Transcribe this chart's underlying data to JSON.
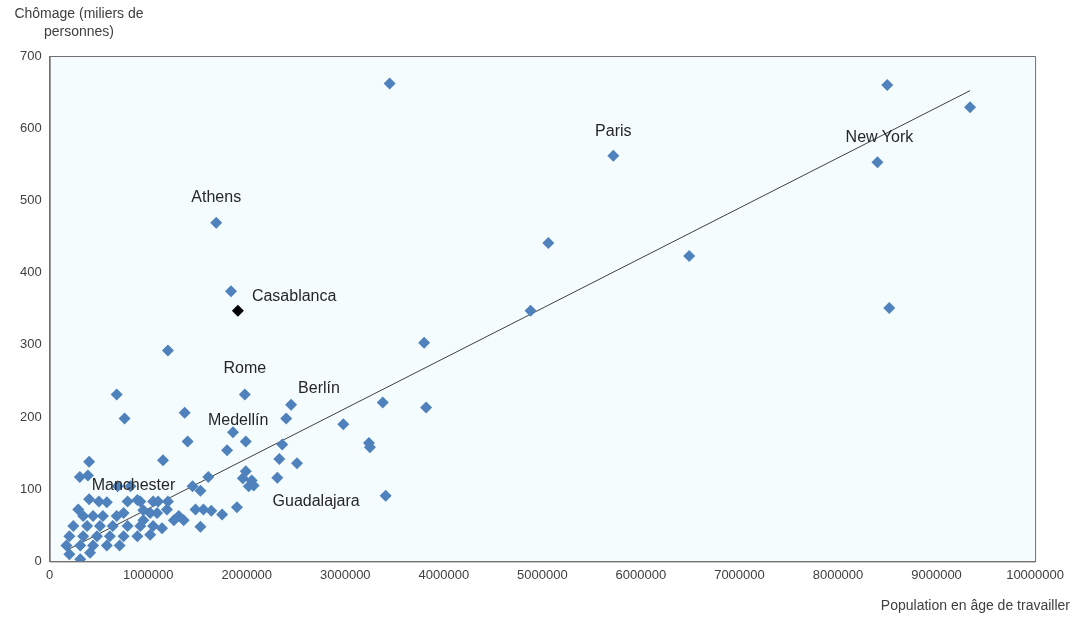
{
  "chart_data": {
    "type": "scatter",
    "xlabel": "Population en âge de travailler",
    "ylabel": "Chômage (miliers de personnes)",
    "marker": "diamond",
    "grid": false,
    "xlim": [
      0,
      10000000
    ],
    "xticks": [
      0,
      1000000,
      2000000,
      3000000,
      4000000,
      5000000,
      6000000,
      7000000,
      8000000,
      9000000,
      10000000
    ],
    "ylim": [
      0,
      700
    ],
    "yticks": [
      0,
      100,
      200,
      300,
      400,
      500,
      600,
      700
    ],
    "series": [
      {
        "color": "#4f81bd",
        "x": [
          3450000,
          8500000,
          9340000,
          5720000,
          8400000,
          1690000,
          5060000,
          6490000,
          1840000,
          4880000,
          8520000,
          3800000,
          1200000,
          680000,
          1980000,
          2450000,
          3380000,
          3820000,
          760000,
          1370000,
          2980000,
          2400000,
          1860000,
          1400000,
          1990000,
          3240000,
          3250000,
          1800000,
          2360000,
          2330000,
          2510000,
          400000,
          1150000,
          1610000,
          1990000,
          1960000,
          2050000,
          2070000,
          2020000,
          2310000,
          1900000,
          3410000,
          1530000,
          306000,
          388000,
          1480000,
          1560000,
          1640000,
          1750000,
          1530000,
          1310000,
          1360000,
          1190000,
          1200000,
          1450000,
          290000,
          400000,
          500000,
          580000,
          690000,
          820000,
          790000,
          890000,
          920000,
          1050000,
          1100000,
          950000,
          1020000,
          750000,
          680000,
          540000,
          440000,
          340000,
          240000,
          380000,
          510000,
          640000,
          790000,
          920000,
          1050000,
          200000,
          340000,
          480000,
          610000,
          750000,
          890000,
          170000,
          310000,
          440000,
          580000,
          710000,
          200000,
          310000,
          410000,
          950000,
          1090000,
          1260000,
          1020000,
          1140000
        ],
        "values": [
          662,
          660,
          629,
          562,
          553,
          469,
          441,
          423,
          374,
          347,
          351,
          303,
          292,
          231,
          231,
          217,
          220,
          213,
          198,
          206,
          190,
          198,
          179,
          166,
          166,
          164,
          158,
          154,
          162,
          142,
          136,
          138,
          140,
          117,
          125,
          115,
          112,
          105,
          104,
          116,
          75,
          91,
          98,
          117,
          119,
          72,
          72,
          70,
          65,
          48,
          63,
          57,
          72,
          83,
          104,
          72,
          86,
          83,
          82,
          104,
          104,
          83,
          85,
          83,
          83,
          83,
          71,
          67,
          67,
          63,
          63,
          63,
          63,
          49,
          49,
          49,
          49,
          49,
          49,
          49,
          35,
          35,
          35,
          35,
          35,
          35,
          22,
          22,
          22,
          22,
          22,
          10,
          3,
          12,
          57,
          67,
          57,
          37,
          46
        ]
      },
      {
        "color": "#000000",
        "x": [
          1910000
        ],
        "values": [
          347
        ]
      },
      {
        "type": "line",
        "color": "#404040",
        "marker": "none",
        "x": [
          180000,
          9340000
        ],
        "values": [
          16,
          652
        ]
      }
    ],
    "annotations": [
      {
        "text": "Athens",
        "x": 1690000,
        "y": 469
      },
      {
        "text": "Paris",
        "x": 5720000,
        "y": 562
      },
      {
        "text": "New York",
        "x": 8400000,
        "y": 553
      },
      {
        "text": "Casablanca",
        "x": 1910000,
        "y": 347
      },
      {
        "text": "Rome",
        "x": 1980000,
        "y": 231
      },
      {
        "text": "Berlín",
        "x": 2450000,
        "y": 217
      },
      {
        "text": "Medellín",
        "x": 1860000,
        "y": 179
      },
      {
        "text": "Manchester",
        "x": 690000,
        "y": 104
      },
      {
        "text": "Guadalajara",
        "x": 3410000,
        "y": 91
      }
    ]
  }
}
